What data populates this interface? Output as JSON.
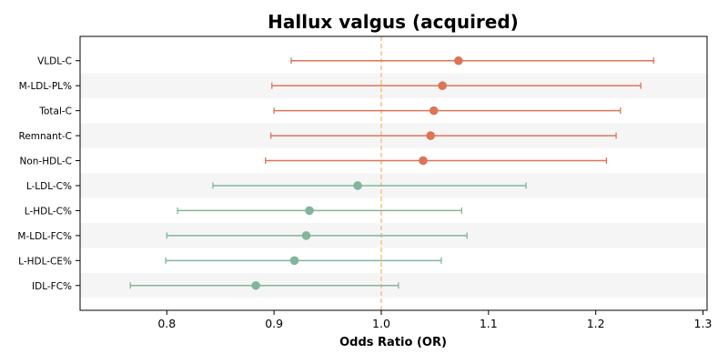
{
  "chart_data": {
    "type": "forest",
    "title": "Hallux valgus (acquired)",
    "xlabel": "Odds Ratio (OR)",
    "xlim": [
      0.72,
      1.31
    ],
    "xticks": [
      0.8,
      0.9,
      1.0,
      1.1,
      1.2,
      1.3
    ],
    "xtick_labels": [
      "0.8",
      "0.9",
      "1.0",
      "1.1",
      "1.2",
      "1.3"
    ],
    "reference_line": 1.0,
    "grid": false,
    "row_shading": "alternating",
    "colors": {
      "positive": "#dc7456",
      "negative": "#82b59a",
      "reference": "#f5c27a",
      "band": "#f5f5f5"
    },
    "rows": [
      {
        "label": "VLDL-C",
        "or": 1.072,
        "lower": 0.916,
        "upper": 1.254,
        "group": "positive"
      },
      {
        "label": "M-LDL-PL%",
        "or": 1.057,
        "lower": 0.898,
        "upper": 1.242,
        "group": "positive"
      },
      {
        "label": "Total-C",
        "or": 1.049,
        "lower": 0.9,
        "upper": 1.223,
        "group": "positive"
      },
      {
        "label": "Remnant-C",
        "or": 1.046,
        "lower": 0.897,
        "upper": 1.219,
        "group": "positive"
      },
      {
        "label": "Non-HDL-C",
        "or": 1.039,
        "lower": 0.892,
        "upper": 1.21,
        "group": "positive"
      },
      {
        "label": "L-LDL-C%",
        "or": 0.978,
        "lower": 0.843,
        "upper": 1.135,
        "group": "negative"
      },
      {
        "label": "L-HDL-C%",
        "or": 0.933,
        "lower": 0.81,
        "upper": 1.075,
        "group": "negative"
      },
      {
        "label": "M-LDL-FC%",
        "or": 0.93,
        "lower": 0.8,
        "upper": 1.08,
        "group": "negative"
      },
      {
        "label": "L-HDL-CE%",
        "or": 0.919,
        "lower": 0.799,
        "upper": 1.056,
        "group": "negative"
      },
      {
        "label": "IDL-FC%",
        "or": 0.883,
        "lower": 0.766,
        "upper": 1.016,
        "group": "negative"
      }
    ]
  }
}
